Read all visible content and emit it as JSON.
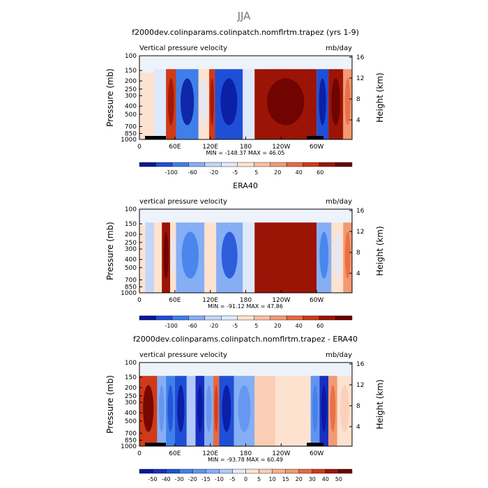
{
  "season_title": "JJA",
  "chart_data": [
    {
      "type": "heatmap",
      "title": "f2000dev.colinparams.colinpatch.nomflrtm.trapez (yrs 1-9)",
      "left_subtitle": "Vertical pressure velocity",
      "right_subtitle": "mb/day",
      "ylabel": "Pressure (mb)",
      "y2label": "Height (km)",
      "pressure_ticks": [
        "100",
        "150",
        "200",
        "250",
        "300",
        "400",
        "500",
        "700",
        "850",
        "1000"
      ],
      "height_ticks": [
        "16",
        "12",
        "8",
        "4"
      ],
      "x_ticks": [
        "0",
        "60E",
        "120E",
        "180",
        "120W",
        "60W"
      ],
      "stats": "MIN = -148.37   MAX =  46.05",
      "colorbar_labels": [
        "-100",
        "-60",
        "-20",
        "-5",
        "5",
        "20",
        "40",
        "60"
      ],
      "bands": [
        {
          "lon": [
            25,
            45
          ],
          "v": -12
        },
        {
          "lon": [
            45,
            62
          ],
          "v": 18
        },
        {
          "lon": [
            62,
            100
          ],
          "v": -70
        },
        {
          "lon": [
            100,
            118
          ],
          "v": -8
        },
        {
          "lon": [
            118,
            128
          ],
          "v": 14
        },
        {
          "lon": [
            128,
            175
          ],
          "v": -95
        },
        {
          "lon": [
            175,
            195
          ],
          "v": -12
        },
        {
          "lon": [
            195,
            300
          ],
          "v": 28
        },
        {
          "lon": [
            300,
            320
          ],
          "v": -90
        },
        {
          "lon": [
            320,
            345
          ],
          "v": 28
        },
        {
          "lon": [
            345,
            360
          ],
          "v": 4
        }
      ]
    },
    {
      "type": "heatmap",
      "title": "ERA40",
      "left_subtitle": "vertical pressure velocity",
      "right_subtitle": "mb/day",
      "ylabel": "Pressure (mb)",
      "y2label": "Height (km)",
      "pressure_ticks": [
        "100",
        "150",
        "200",
        "250",
        "300",
        "400",
        "500",
        "700",
        "850",
        "1000"
      ],
      "height_ticks": [
        "16",
        "12",
        "8",
        "4"
      ],
      "x_ticks": [
        "0",
        "60E",
        "120E",
        "180",
        "120W",
        "60W"
      ],
      "stats": "MIN = -91.12   MAX =  47.86",
      "colorbar_labels": [
        "-100",
        "-60",
        "-20",
        "-5",
        "5",
        "20",
        "40",
        "60"
      ],
      "bands": [
        {
          "lon": [
            10,
            25
          ],
          "v": -20
        },
        {
          "lon": [
            25,
            38
          ],
          "v": -6
        },
        {
          "lon": [
            38,
            52
          ],
          "v": 38
        },
        {
          "lon": [
            52,
            62
          ],
          "v": -8
        },
        {
          "lon": [
            62,
            110
          ],
          "v": -40
        },
        {
          "lon": [
            110,
            130
          ],
          "v": -5
        },
        {
          "lon": [
            130,
            175
          ],
          "v": -55
        },
        {
          "lon": [
            175,
            195
          ],
          "v": -10
        },
        {
          "lon": [
            195,
            300
          ],
          "v": 24
        },
        {
          "lon": [
            300,
            325
          ],
          "v": -40
        },
        {
          "lon": [
            325,
            345
          ],
          "v": -8
        },
        {
          "lon": [
            345,
            360
          ],
          "v": 4
        }
      ]
    },
    {
      "type": "heatmap",
      "title": "f2000dev.colinparams.colinpatch.nomflrtm.trapez - ERA40",
      "left_subtitle": "vertical pressure velocity",
      "right_subtitle": "mb/day",
      "ylabel": "Pressure (mb)",
      "y2label": "Height (km)",
      "pressure_ticks": [
        "100",
        "150",
        "200",
        "250",
        "300",
        "400",
        "500",
        "700",
        "850",
        "1000"
      ],
      "height_ticks": [
        "16",
        "12",
        "8",
        "4"
      ],
      "x_ticks": [
        "0",
        "60E",
        "120E",
        "180",
        "120W",
        "60W"
      ],
      "stats": "MIN = -93.78   MAX =  60.49",
      "colorbar_labels": [
        "-50",
        "-40",
        "-30",
        "-20",
        "-15",
        "-10",
        "-5",
        "0",
        "5",
        "10",
        "15",
        "20",
        "30",
        "40",
        "50"
      ],
      "bands": [
        {
          "lon": [
            0,
            30
          ],
          "v": 35
        },
        {
          "lon": [
            30,
            45
          ],
          "v": -10
        },
        {
          "lon": [
            45,
            60
          ],
          "v": -20
        },
        {
          "lon": [
            60,
            80
          ],
          "v": -35
        },
        {
          "lon": [
            80,
            95
          ],
          "v": -5
        },
        {
          "lon": [
            95,
            110
          ],
          "v": -40
        },
        {
          "lon": [
            110,
            125
          ],
          "v": -10
        },
        {
          "lon": [
            125,
            135
          ],
          "v": 25
        },
        {
          "lon": [
            135,
            160
          ],
          "v": -35
        },
        {
          "lon": [
            160,
            195
          ],
          "v": -10
        },
        {
          "lon": [
            195,
            230
          ],
          "v": 6
        },
        {
          "lon": [
            230,
            290
          ],
          "v": 3
        },
        {
          "lon": [
            290,
            305
          ],
          "v": -15
        },
        {
          "lon": [
            305,
            320
          ],
          "v": -45
        },
        {
          "lon": [
            320,
            335
          ],
          "v": 20
        },
        {
          "lon": [
            335,
            360
          ],
          "v": 4
        }
      ]
    }
  ]
}
